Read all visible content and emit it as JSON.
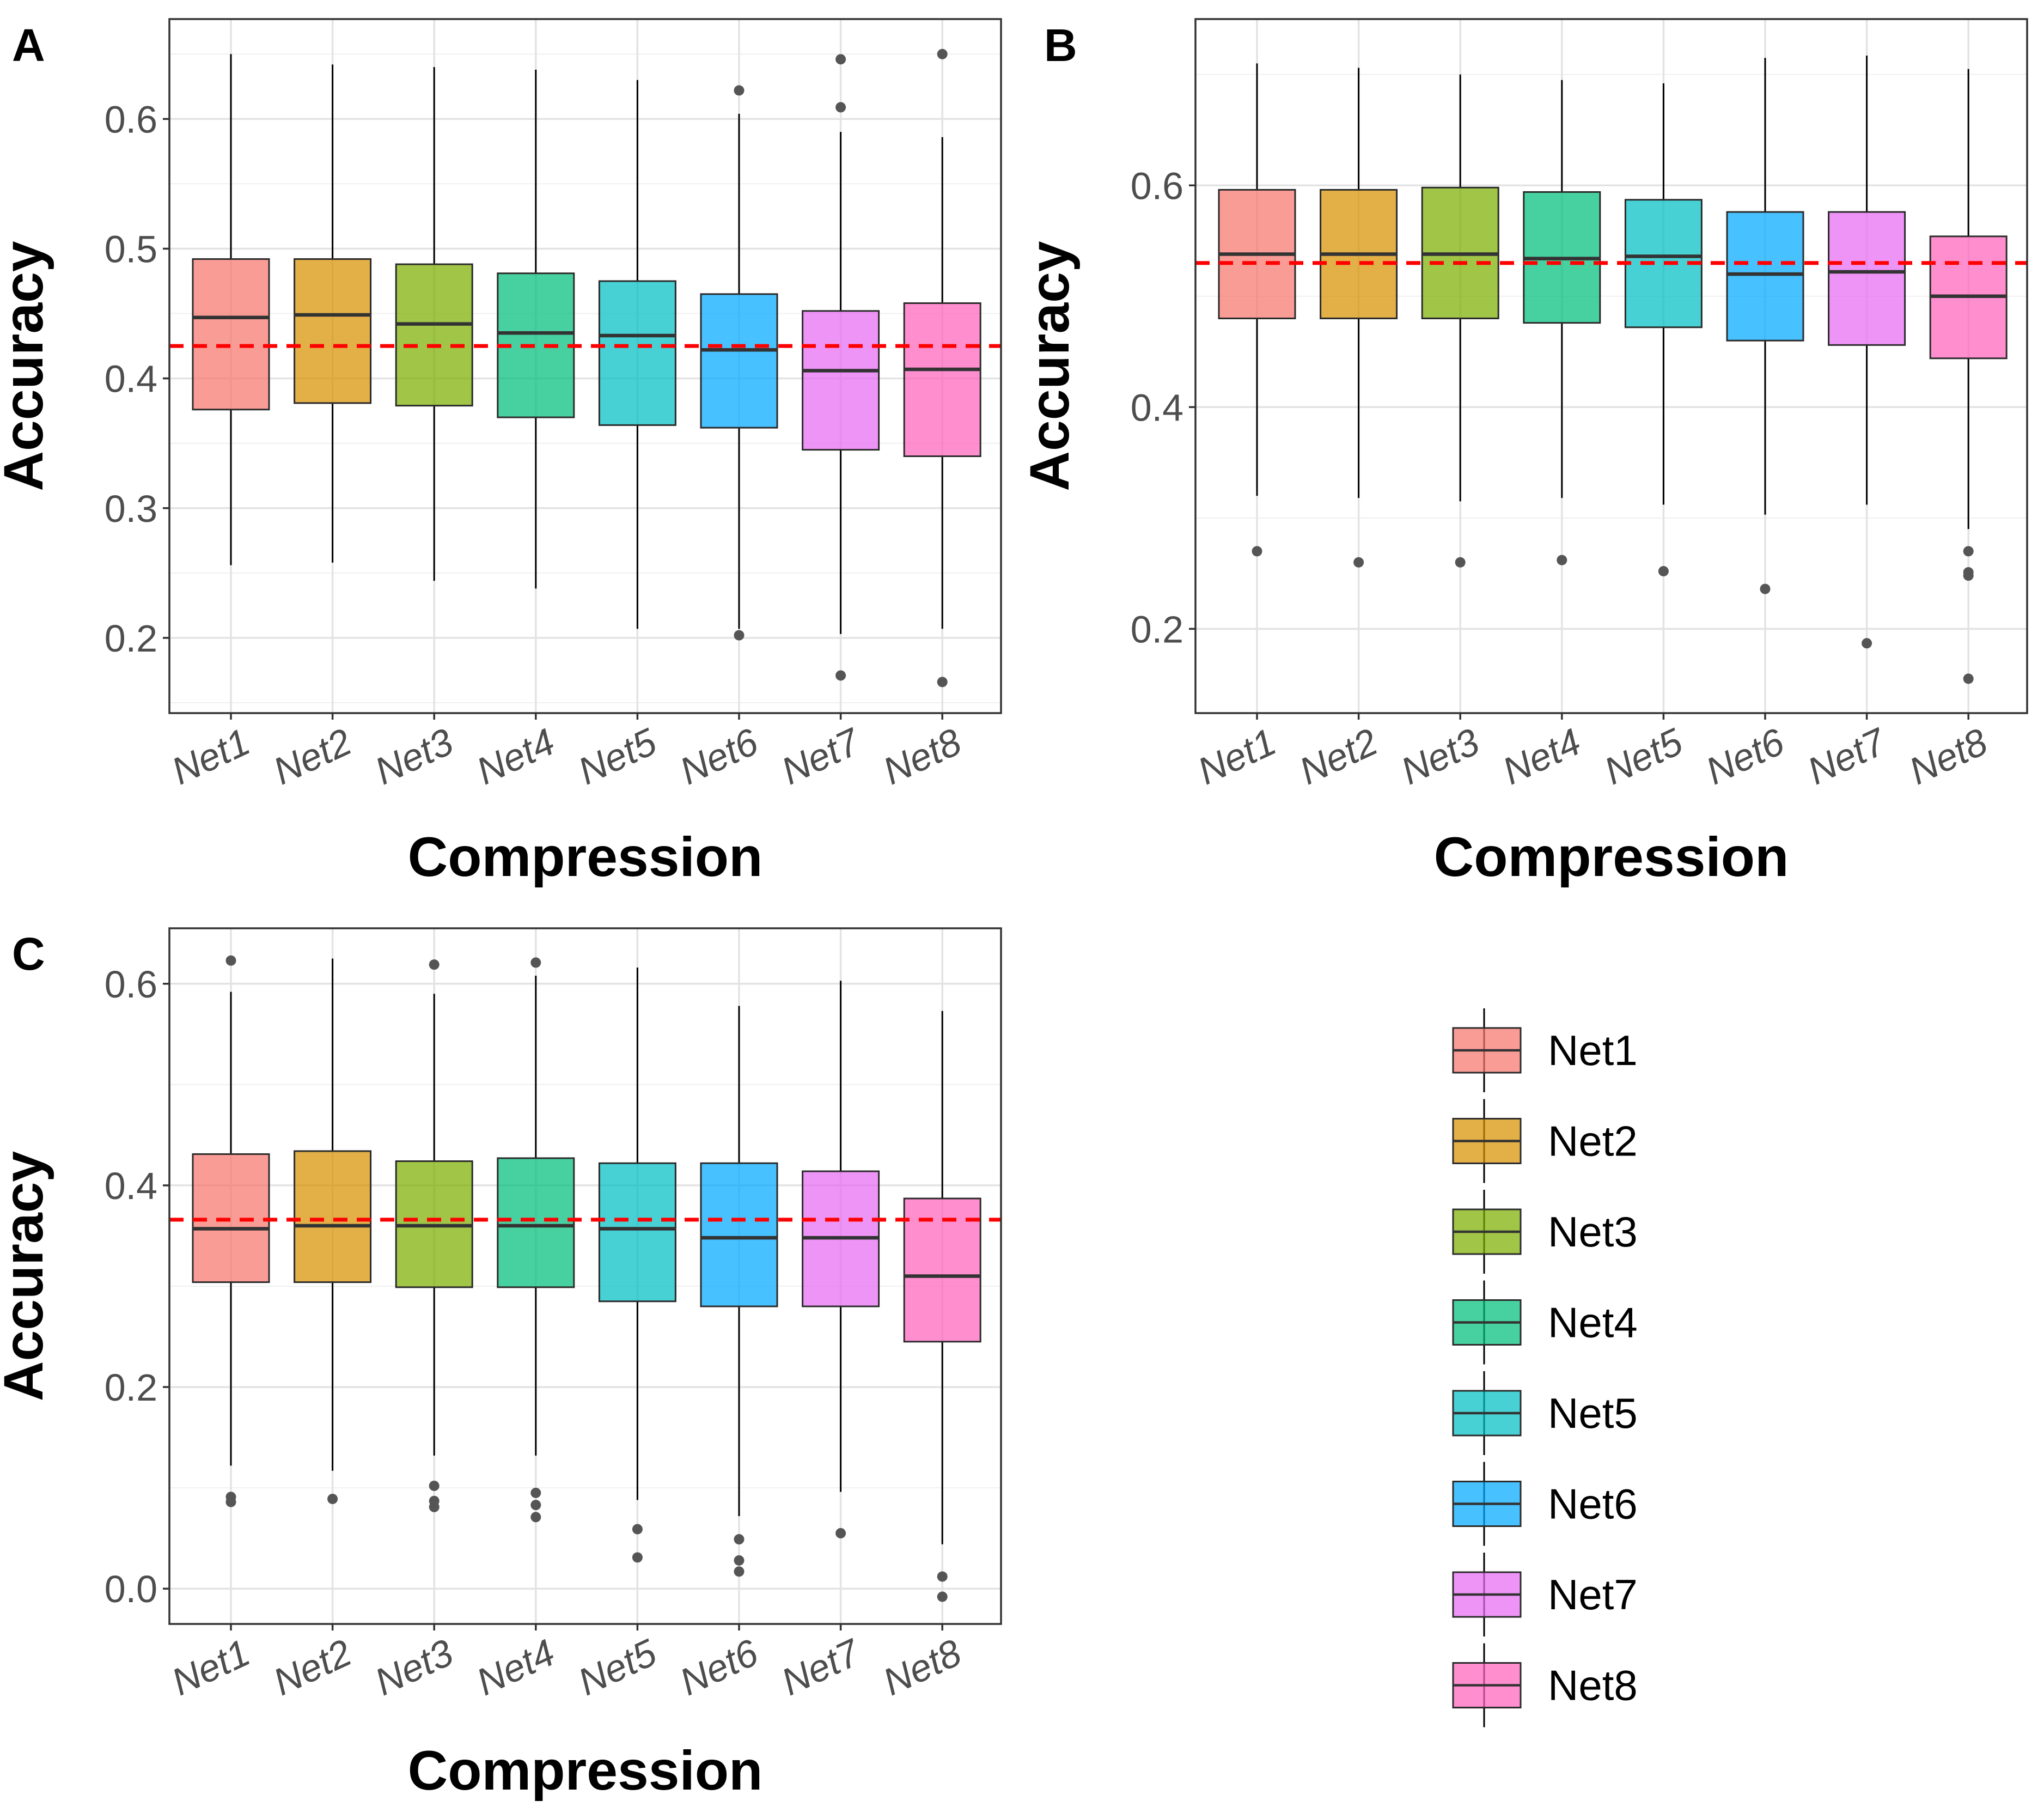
{
  "figure": {
    "legend": {
      "items": [
        {
          "label": "Net1",
          "color": "#F8766D"
        },
        {
          "label": "Net2",
          "color": "#D89000"
        },
        {
          "label": "Net3",
          "color": "#7CAE00"
        },
        {
          "label": "Net4",
          "color": "#00BF7D"
        },
        {
          "label": "Net5",
          "color": "#00BFC4"
        },
        {
          "label": "Net6",
          "color": "#00A9FF"
        },
        {
          "label": "Net7",
          "color": "#E76BF3"
        },
        {
          "label": "Net8",
          "color": "#FF62BC"
        }
      ]
    }
  },
  "chart_data": [
    {
      "panel": "A",
      "type": "boxplot",
      "xlabel": "Compression",
      "ylabel": "Accuracy",
      "ylim": [
        0.142,
        0.677
      ],
      "yticks": [
        0.2,
        0.3,
        0.4,
        0.5,
        0.6
      ],
      "ytick_labels": [
        "0.2",
        "0.3",
        "0.4",
        "0.5",
        "0.6"
      ],
      "reference_line": 0.425,
      "categories": [
        "Net1",
        "Net2",
        "Net3",
        "Net4",
        "Net5",
        "Net6",
        "Net7",
        "Net8"
      ],
      "boxes": [
        {
          "category": "Net1",
          "whisker_low": 0.256,
          "q1": 0.376,
          "median": 0.447,
          "q3": 0.492,
          "whisker_high": 0.65,
          "outliers": []
        },
        {
          "category": "Net2",
          "whisker_low": 0.258,
          "q1": 0.381,
          "median": 0.449,
          "q3": 0.492,
          "whisker_high": 0.642,
          "outliers": []
        },
        {
          "category": "Net3",
          "whisker_low": 0.244,
          "q1": 0.379,
          "median": 0.442,
          "q3": 0.488,
          "whisker_high": 0.64,
          "outliers": []
        },
        {
          "category": "Net4",
          "whisker_low": 0.238,
          "q1": 0.37,
          "median": 0.435,
          "q3": 0.481,
          "whisker_high": 0.638,
          "outliers": []
        },
        {
          "category": "Net5",
          "whisker_low": 0.207,
          "q1": 0.364,
          "median": 0.433,
          "q3": 0.475,
          "whisker_high": 0.63,
          "outliers": []
        },
        {
          "category": "Net6",
          "whisker_low": 0.207,
          "q1": 0.362,
          "median": 0.422,
          "q3": 0.465,
          "whisker_high": 0.604,
          "outliers": [
            0.622,
            0.202
          ]
        },
        {
          "category": "Net7",
          "whisker_low": 0.203,
          "q1": 0.345,
          "median": 0.406,
          "q3": 0.452,
          "whisker_high": 0.59,
          "outliers": [
            0.646,
            0.609,
            0.171
          ]
        },
        {
          "category": "Net8",
          "whisker_low": 0.207,
          "q1": 0.34,
          "median": 0.407,
          "q3": 0.458,
          "whisker_high": 0.586,
          "outliers": [
            0.65,
            0.166
          ]
        }
      ]
    },
    {
      "panel": "B",
      "type": "boxplot",
      "xlabel": "Compression",
      "ylabel": "Accuracy",
      "ylim": [
        0.124,
        0.75
      ],
      "yticks": [
        0.2,
        0.4,
        0.6
      ],
      "ytick_labels": [
        "0.2",
        "0.4",
        "0.6"
      ],
      "reference_line": 0.53,
      "categories": [
        "Net1",
        "Net2",
        "Net3",
        "Net4",
        "Net5",
        "Net6",
        "Net7",
        "Net8"
      ],
      "boxes": [
        {
          "category": "Net1",
          "whisker_low": 0.32,
          "q1": 0.48,
          "median": 0.538,
          "q3": 0.596,
          "whisker_high": 0.71,
          "outliers": [
            0.27
          ]
        },
        {
          "category": "Net2",
          "whisker_low": 0.318,
          "q1": 0.48,
          "median": 0.538,
          "q3": 0.596,
          "whisker_high": 0.706,
          "outliers": [
            0.26
          ]
        },
        {
          "category": "Net3",
          "whisker_low": 0.315,
          "q1": 0.48,
          "median": 0.538,
          "q3": 0.598,
          "whisker_high": 0.7,
          "outliers": [
            0.26
          ]
        },
        {
          "category": "Net4",
          "whisker_low": 0.318,
          "q1": 0.476,
          "median": 0.534,
          "q3": 0.594,
          "whisker_high": 0.695,
          "outliers": [
            0.262
          ]
        },
        {
          "category": "Net5",
          "whisker_low": 0.312,
          "q1": 0.472,
          "median": 0.536,
          "q3": 0.587,
          "whisker_high": 0.692,
          "outliers": [
            0.252
          ]
        },
        {
          "category": "Net6",
          "whisker_low": 0.303,
          "q1": 0.46,
          "median": 0.52,
          "q3": 0.576,
          "whisker_high": 0.715,
          "outliers": [
            0.236
          ]
        },
        {
          "category": "Net7",
          "whisker_low": 0.312,
          "q1": 0.456,
          "median": 0.522,
          "q3": 0.576,
          "whisker_high": 0.717,
          "outliers": [
            0.187
          ]
        },
        {
          "category": "Net8",
          "whisker_low": 0.29,
          "q1": 0.444,
          "median": 0.5,
          "q3": 0.554,
          "whisker_high": 0.705,
          "outliers": [
            0.27,
            0.251,
            0.248,
            0.155
          ]
        }
      ]
    },
    {
      "panel": "C",
      "type": "boxplot",
      "xlabel": "Compression",
      "ylabel": "Accuracy",
      "ylim": [
        -0.035,
        0.655
      ],
      "yticks": [
        0.0,
        0.2,
        0.4,
        0.6
      ],
      "ytick_labels": [
        "0.0",
        "0.2",
        "0.4",
        "0.6"
      ],
      "reference_line": 0.366,
      "categories": [
        "Net1",
        "Net2",
        "Net3",
        "Net4",
        "Net5",
        "Net6",
        "Net7",
        "Net8"
      ],
      "boxes": [
        {
          "category": "Net1",
          "whisker_low": 0.122,
          "q1": 0.304,
          "median": 0.357,
          "q3": 0.431,
          "whisker_high": 0.592,
          "outliers": [
            0.623,
            0.091,
            0.086
          ]
        },
        {
          "category": "Net2",
          "whisker_low": 0.117,
          "q1": 0.304,
          "median": 0.36,
          "q3": 0.434,
          "whisker_high": 0.625,
          "outliers": [
            0.089
          ]
        },
        {
          "category": "Net3",
          "whisker_low": 0.132,
          "q1": 0.299,
          "median": 0.36,
          "q3": 0.424,
          "whisker_high": 0.59,
          "outliers": [
            0.619,
            0.102,
            0.087,
            0.081
          ]
        },
        {
          "category": "Net4",
          "whisker_low": 0.132,
          "q1": 0.299,
          "median": 0.36,
          "q3": 0.427,
          "whisker_high": 0.608,
          "outliers": [
            0.621,
            0.095,
            0.083,
            0.071
          ]
        },
        {
          "category": "Net5",
          "whisker_low": 0.088,
          "q1": 0.285,
          "median": 0.357,
          "q3": 0.422,
          "whisker_high": 0.616,
          "outliers": [
            0.059,
            0.031
          ]
        },
        {
          "category": "Net6",
          "whisker_low": 0.072,
          "q1": 0.28,
          "median": 0.348,
          "q3": 0.422,
          "whisker_high": 0.578,
          "outliers": [
            0.049,
            0.028,
            0.017
          ]
        },
        {
          "category": "Net7",
          "whisker_low": 0.096,
          "q1": 0.28,
          "median": 0.348,
          "q3": 0.414,
          "whisker_high": 0.603,
          "outliers": [
            0.055
          ]
        },
        {
          "category": "Net8",
          "whisker_low": 0.044,
          "q1": 0.245,
          "median": 0.31,
          "q3": 0.387,
          "whisker_high": 0.573,
          "outliers": [
            0.012,
            -0.008
          ]
        }
      ]
    }
  ]
}
